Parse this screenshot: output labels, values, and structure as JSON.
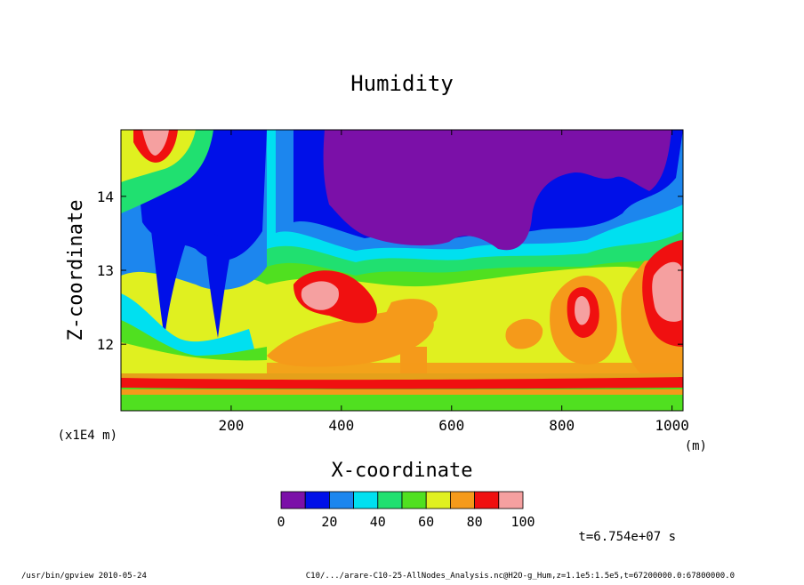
{
  "chart_data": {
    "type": "heatmap",
    "title": "Humidity",
    "xlabel": "X-coordinate",
    "ylabel": "Z-coordinate",
    "x_unit": "(m)",
    "y_scale_note": "(x1E4 m)",
    "xlim": [
      0,
      1020
    ],
    "ylim": [
      11.1,
      14.9
    ],
    "x_ticks": [
      200,
      400,
      600,
      800,
      1000
    ],
    "y_ticks": [
      12,
      13,
      14
    ],
    "colorbar": {
      "levels": [
        0,
        10,
        20,
        30,
        40,
        50,
        60,
        70,
        80,
        90,
        100
      ],
      "tick_labels": [
        "0",
        "20",
        "40",
        "60",
        "80",
        "100"
      ],
      "colors": [
        "#7b10a8",
        "#0010e8",
        "#1c86ee",
        "#00e0f0",
        "#20e070",
        "#50e020",
        "#e0f020",
        "#f59a1a",
        "#f01010",
        "#f5a0a0"
      ]
    },
    "grid": false,
    "legend": "colorbar below plot"
  },
  "annotations": {
    "time": "t=6.754e+07 s",
    "footer_left": "/usr/bin/gpview  2010-05-24",
    "footer_right": "C10/.../arare-C10-25-AllNodes_Analysis.nc@H2O-g_Hum,z=1.1e5:1.5e5,t=67200000.0:67800000.0"
  }
}
